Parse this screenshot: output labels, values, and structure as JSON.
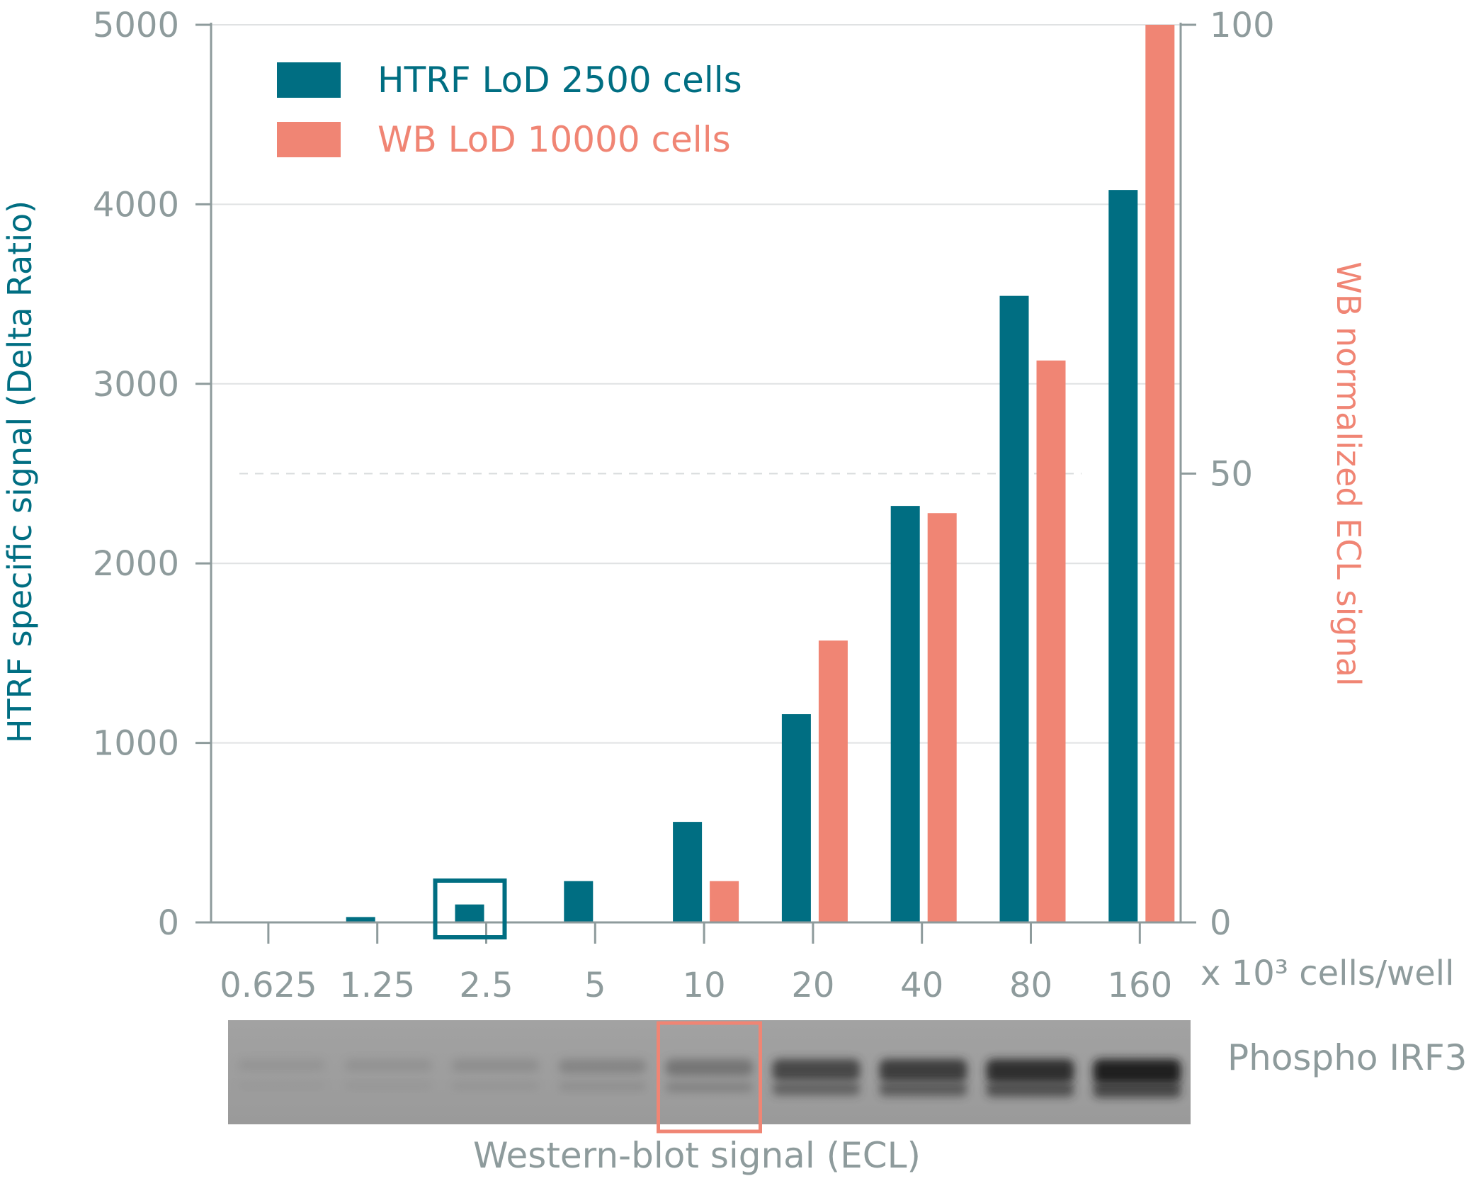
{
  "chart_data": {
    "type": "bar",
    "categories": [
      "0.625",
      "1.25",
      "2.5",
      "5",
      "10",
      "20",
      "40",
      "80",
      "160"
    ],
    "xunit": "x 10³ cells/well",
    "ylabel_left": "HTRF specific signal (Delta Ratio)",
    "ylabel_right": "WB normalized ECL signal",
    "ylim_left": [
      0,
      5000
    ],
    "ylim_right": [
      0,
      100
    ],
    "yticks_left": [
      "0",
      "1000",
      "2000",
      "3000",
      "4000",
      "5000"
    ],
    "yticks_right": [
      "0",
      "50",
      "100"
    ],
    "series": [
      {
        "name": "HTRF LoD 2500 cells",
        "axis": "left",
        "color": "#006e82",
        "values": [
          0,
          30,
          100,
          230,
          560,
          1160,
          2320,
          3490,
          4080
        ]
      },
      {
        "name": "WB LoD 10000 cells",
        "axis": "right",
        "color": "#f08574",
        "values": [
          0,
          0,
          0,
          0,
          4.6,
          31.4,
          45.6,
          62.6,
          100
        ]
      }
    ],
    "highlight_htrf_category": "2.5",
    "highlight_wb_category": "10",
    "blot": {
      "label": "Phospho IRF3",
      "caption": "Western-blot signal (ECL)",
      "band_intensity": [
        0.12,
        0.15,
        0.2,
        0.3,
        0.45,
        0.75,
        0.82,
        0.88,
        0.95
      ]
    }
  }
}
